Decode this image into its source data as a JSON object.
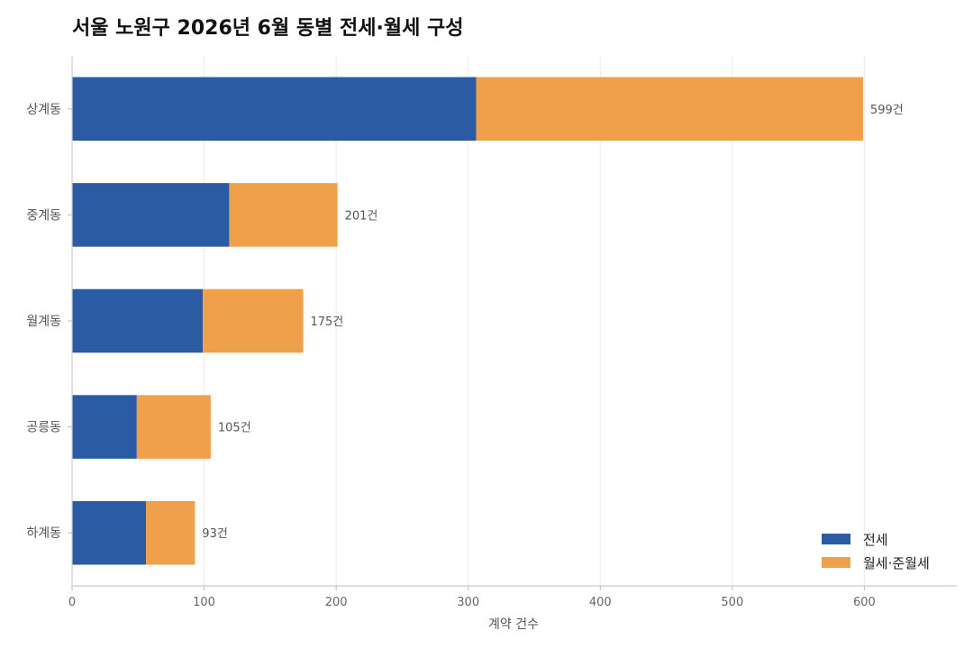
{
  "chart_data": {
    "type": "bar",
    "orientation": "horizontal",
    "stacked": true,
    "title": "서울 노원구 2026년 6월 동별 전세·월세 구성",
    "xlabel": "계약 건수",
    "ylabel": "",
    "xlim": [
      0,
      670
    ],
    "x_ticks": [
      0,
      100,
      200,
      300,
      400,
      500,
      600
    ],
    "grid": "vertical",
    "legend_position": "bottom-right",
    "categories": [
      "상계동",
      "중계동",
      "월계동",
      "공릉동",
      "하계동"
    ],
    "series": [
      {
        "name": "전세",
        "color": "#2b5ca3",
        "values": [
          306,
          119,
          99,
          49,
          56
        ]
      },
      {
        "name": "월세·준월세",
        "color": "#f0a04b",
        "values": [
          293,
          82,
          76,
          56,
          37
        ]
      }
    ],
    "totals": [
      599,
      201,
      175,
      105,
      93
    ],
    "total_labels": [
      "599건",
      "201건",
      "175건",
      "105건",
      "93건"
    ]
  }
}
